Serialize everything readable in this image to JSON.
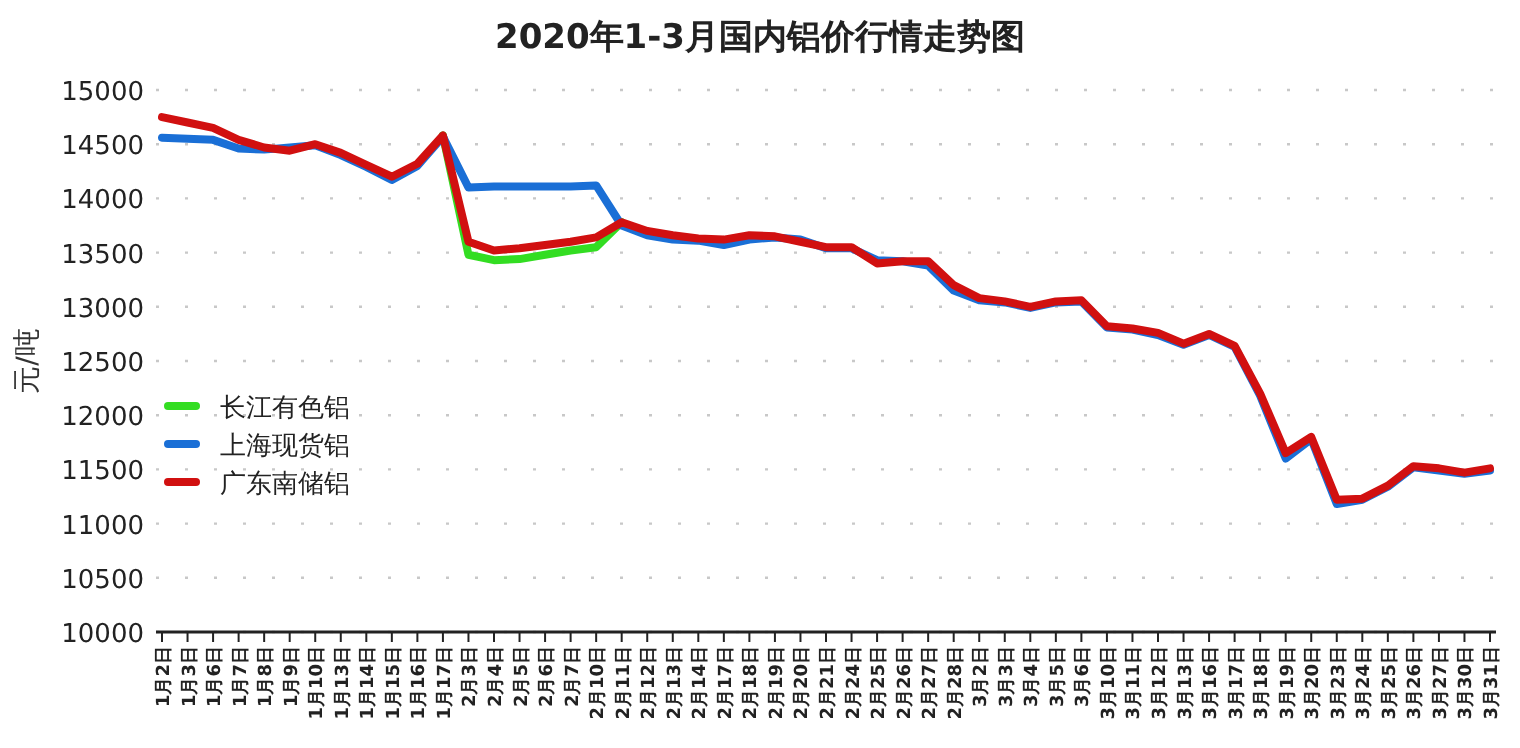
{
  "chart_data": {
    "type": "line",
    "title": "2020年1-3月国内铝价行情走势图",
    "ylabel": "元/吨",
    "categories": [
      "1月2日",
      "1月3日",
      "1月6日",
      "1月7日",
      "1月8日",
      "1月9日",
      "1月10日",
      "1月13日",
      "1月14日",
      "1月15日",
      "1月16日",
      "1月17日",
      "2月3日",
      "2月4日",
      "2月5日",
      "2月6日",
      "2月7日",
      "2月10日",
      "2月11日",
      "2月12日",
      "2月13日",
      "2月14日",
      "2月17日",
      "2月18日",
      "2月19日",
      "2月20日",
      "2月21日",
      "2月24日",
      "2月25日",
      "2月26日",
      "2月27日",
      "2月28日",
      "3月2日",
      "3月3日",
      "3月4日",
      "3月5日",
      "3月6日",
      "3月10日",
      "3月11日",
      "3月12日",
      "3月13日",
      "3月16日",
      "3月17日",
      "3月18日",
      "3月19日",
      "3月20日",
      "3月23日",
      "3月24日",
      "3月25日",
      "3月26日",
      "3月27日",
      "3月30日",
      "3月31日"
    ],
    "series": [
      {
        "name": "长江有色铝",
        "color": "#33dd22",
        "values": [
          null,
          null,
          null,
          null,
          null,
          null,
          null,
          null,
          null,
          null,
          null,
          14580,
          13480,
          13430,
          13440,
          13480,
          13520,
          13550,
          13780,
          null,
          null,
          null,
          null,
          null,
          null,
          null,
          null,
          null,
          null,
          null,
          null,
          null,
          null,
          null,
          null,
          null,
          null,
          null,
          null,
          null,
          null,
          null,
          null,
          null,
          null,
          null,
          null,
          null,
          null,
          null,
          null,
          null,
          null
        ]
      },
      {
        "name": "上海现货铝",
        "color": "#1a6fd6",
        "values": [
          14560,
          14550,
          14540,
          14460,
          14450,
          14470,
          14490,
          14400,
          14290,
          14170,
          14300,
          14570,
          14100,
          14110,
          14110,
          14110,
          14110,
          14120,
          13750,
          13660,
          13620,
          13610,
          13570,
          13620,
          13640,
          13620,
          13540,
          13540,
          13430,
          13420,
          13380,
          13150,
          13060,
          13040,
          12990,
          13040,
          13050,
          12810,
          12790,
          12740,
          12650,
          12740,
          12630,
          12180,
          11600,
          11780,
          11180,
          11220,
          11340,
          11520,
          11490,
          11460,
          11490
        ]
      },
      {
        "name": "广东南储铝",
        "color": "#d11010",
        "values": [
          14750,
          14700,
          14650,
          14540,
          14470,
          14440,
          14500,
          14420,
          14310,
          14200,
          14320,
          14580,
          13600,
          13520,
          13540,
          13570,
          13600,
          13640,
          13780,
          13700,
          13660,
          13630,
          13620,
          13660,
          13650,
          13600,
          13550,
          13550,
          13400,
          13420,
          13420,
          13200,
          13080,
          13050,
          13000,
          13050,
          13060,
          12820,
          12800,
          12760,
          12660,
          12750,
          12640,
          12200,
          11650,
          11800,
          11220,
          11230,
          11350,
          11530,
          11510,
          11470,
          11510
        ]
      }
    ],
    "ylim": [
      10000,
      15000
    ],
    "yticks": [
      10000,
      10500,
      11000,
      11500,
      12000,
      12500,
      13000,
      13500,
      14000,
      14500,
      15000
    ],
    "grid": "y",
    "legend": "left",
    "marker": "none",
    "line_style": "solid"
  }
}
